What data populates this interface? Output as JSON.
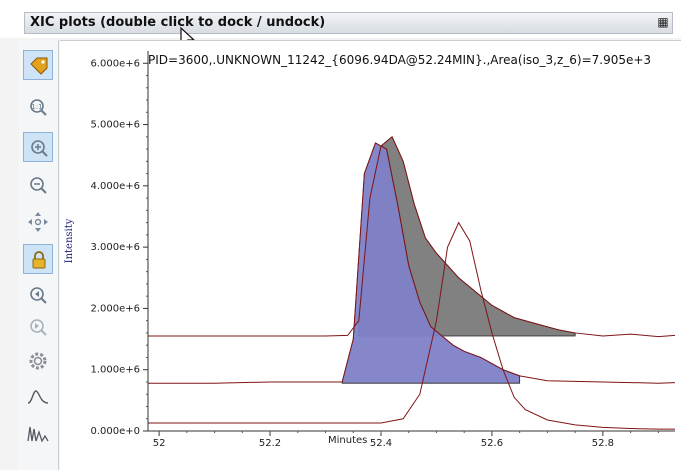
{
  "window": {
    "title": "XIC plots (double click to dock / undock)",
    "dock_icon": "restore-window-icon"
  },
  "toolbar": {
    "tools": [
      {
        "icon": "tag-icon",
        "active": true
      },
      {
        "icon": "zoom-reset-icon",
        "active": false
      },
      {
        "icon": "zoom-in-icon",
        "active": true
      },
      {
        "icon": "zoom-out-icon",
        "active": false
      },
      {
        "icon": "pan-move-icon",
        "active": false
      },
      {
        "icon": "lock-icon",
        "active": true
      },
      {
        "icon": "previous-icon",
        "active": false
      },
      {
        "icon": "next-icon",
        "active": false
      },
      {
        "icon": "settings-gear-icon",
        "active": false
      },
      {
        "icon": "single-peak-icon",
        "active": false
      },
      {
        "icon": "multi-peak-icon",
        "active": false
      }
    ]
  },
  "plot": {
    "title": "PID=3600,.UNKNOWN_11242_{6096.94DA@52.24MIN}.,Area(iso_3,z_6)=7.905e+3",
    "xlabel": "Minutes",
    "ylabel": "Intensity"
  },
  "chart_data": {
    "type": "area",
    "title": "PID=3600,.UNKNOWN_11242_{6096.94DA@52.24MIN}.,Area(iso_3,z_6)=7.905e+3",
    "xlabel": "Minutes",
    "ylabel": "Intensity",
    "xlim": [
      51.98,
      52.93
    ],
    "ylim": [
      0,
      6200000
    ],
    "x_ticks": [
      52,
      52.2,
      52.4,
      52.6,
      52.8
    ],
    "x_tick_labels": [
      "52",
      "52.2",
      "52.4",
      "52.6",
      "52.8"
    ],
    "y_ticks": [
      0,
      1000000,
      2000000,
      3000000,
      4000000,
      5000000,
      6000000
    ],
    "y_tick_labels": [
      "0.000e+0",
      "1.000e+6",
      "2.000e+6",
      "3.000e+6",
      "4.000e+6",
      "5.000e+6",
      "6.000e+6"
    ],
    "grid": false,
    "series": [
      {
        "color": "#7f1416",
        "baseline": 1550000,
        "fill_color": "#7a7a7a",
        "fill_range": [
          52.35,
          52.75
        ],
        "x": [
          51.98,
          52.1,
          52.2,
          52.3,
          52.34,
          52.36,
          52.38,
          52.4,
          52.42,
          52.44,
          52.46,
          52.48,
          52.5,
          52.52,
          52.54,
          52.56,
          52.58,
          52.6,
          52.62,
          52.64,
          52.66,
          52.68,
          52.7,
          52.72,
          52.75,
          52.8,
          52.85,
          52.9,
          52.93
        ],
        "y": [
          1550000,
          1550000,
          1550000,
          1550000,
          1560000,
          1800000,
          3800000,
          4650000,
          4800000,
          4400000,
          3700000,
          3150000,
          2900000,
          2700000,
          2500000,
          2350000,
          2200000,
          2050000,
          1950000,
          1850000,
          1800000,
          1750000,
          1700000,
          1650000,
          1600000,
          1550000,
          1580000,
          1540000,
          1560000
        ]
      },
      {
        "color": "#7f1416",
        "baseline": 780000,
        "fill_color": "#7f7fc8",
        "fill_range": [
          52.33,
          52.65
        ],
        "x": [
          51.98,
          52.1,
          52.2,
          52.3,
          52.33,
          52.35,
          52.37,
          52.39,
          52.41,
          52.43,
          52.45,
          52.47,
          52.49,
          52.51,
          52.53,
          52.55,
          52.58,
          52.62,
          52.65,
          52.7,
          52.8,
          52.9,
          52.93
        ],
        "y": [
          780000,
          780000,
          800000,
          800000,
          800000,
          1500000,
          4200000,
          4700000,
          4600000,
          3700000,
          2700000,
          2100000,
          1700000,
          1550000,
          1400000,
          1300000,
          1200000,
          1000000,
          900000,
          820000,
          800000,
          780000,
          790000
        ]
      },
      {
        "color": "#7f1416",
        "baseline": 0,
        "x": [
          51.98,
          52.1,
          52.2,
          52.3,
          52.4,
          52.44,
          52.47,
          52.5,
          52.52,
          52.54,
          52.56,
          52.58,
          52.6,
          52.62,
          52.64,
          52.66,
          52.7,
          52.75,
          52.8,
          52.85,
          52.9,
          52.93
        ],
        "y": [
          130000,
          130000,
          130000,
          130000,
          130000,
          200000,
          600000,
          1800000,
          3000000,
          3400000,
          3100000,
          2300000,
          1600000,
          1000000,
          550000,
          350000,
          180000,
          100000,
          60000,
          40000,
          30000,
          30000
        ]
      }
    ]
  }
}
